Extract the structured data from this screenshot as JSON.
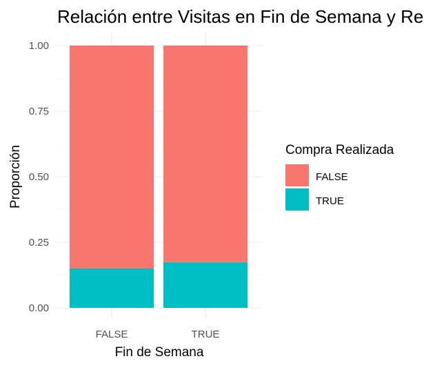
{
  "chart_data": {
    "type": "bar",
    "stacked": true,
    "title": "Relación entre Visitas en Fin de Semana y Rea",
    "xlabel": "Fin de Semana",
    "ylabel": "Proporción",
    "categories": [
      "FALSE",
      "TRUE"
    ],
    "series": [
      {
        "name": "TRUE",
        "values": [
          0.15,
          0.174
        ],
        "color": "#00BFC4"
      },
      {
        "name": "FALSE",
        "values": [
          0.85,
          0.826
        ],
        "color": "#F8766D"
      }
    ],
    "ylim": [
      0,
      1
    ],
    "yticks": [
      0,
      0.25,
      0.5,
      0.75,
      1
    ],
    "ytick_labels": [
      "0.00",
      "0.25",
      "0.50",
      "0.75",
      "1.00"
    ],
    "grid": true,
    "legend": {
      "title": "Compra Realizada",
      "placement": "right",
      "entries": [
        {
          "label": "FALSE",
          "color": "#F8766D"
        },
        {
          "label": "TRUE",
          "color": "#00BFC4"
        }
      ]
    }
  }
}
